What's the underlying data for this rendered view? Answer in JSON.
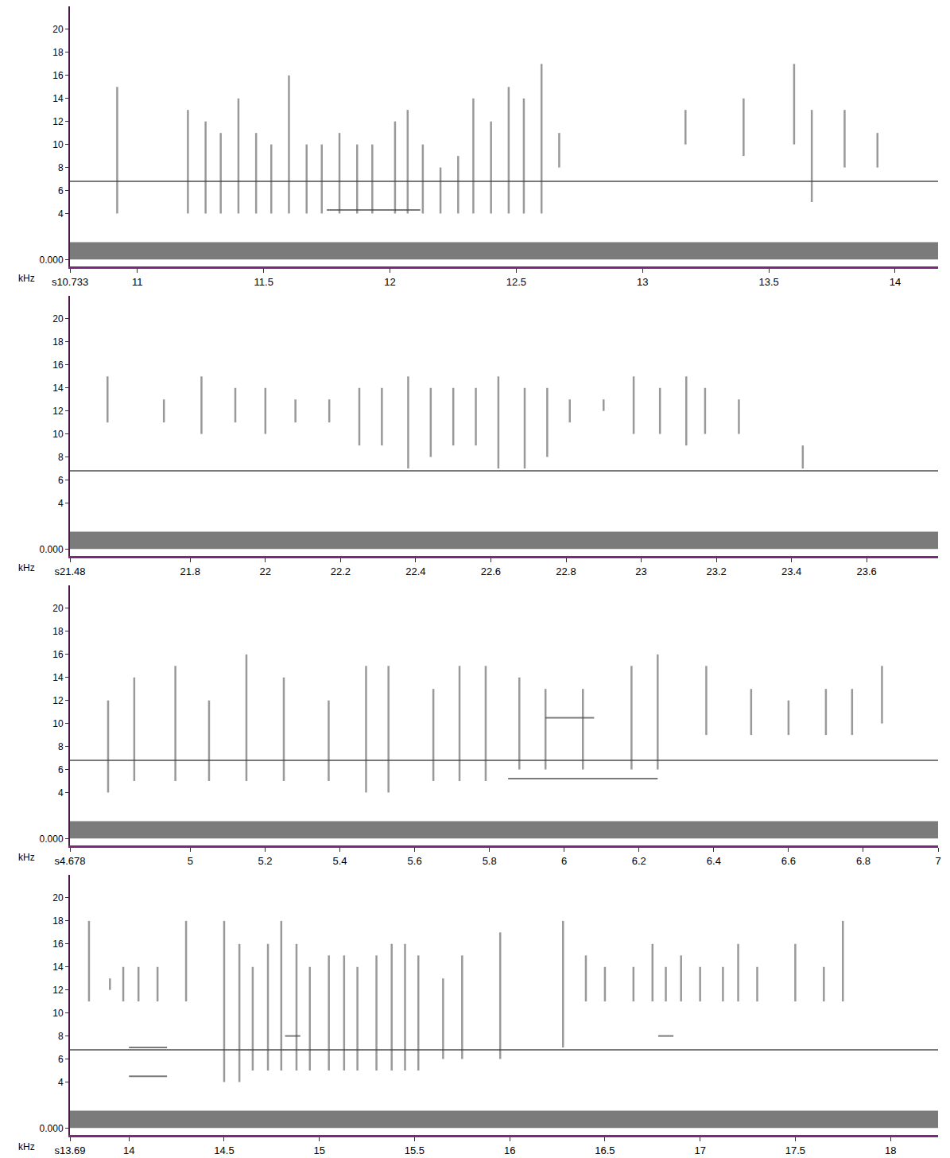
{
  "chart_data": [
    {
      "type": "spectrogram",
      "y_label": "kHz",
      "xlim": [
        10.733,
        14.17
      ],
      "ylim": [
        -0.6,
        22
      ],
      "xticks": [
        {
          "value": 10.733,
          "label": "s10.733"
        },
        11,
        11.5,
        12,
        12.5,
        13,
        13.5,
        14
      ],
      "yticks": [
        {
          "value": 0,
          "label": "0.000"
        },
        4,
        6,
        8,
        10,
        12,
        14,
        16,
        18,
        20
      ],
      "noise_band": 1.5,
      "clicks": [
        [
          10.92,
          4,
          15
        ],
        [
          11.2,
          4,
          13
        ],
        [
          11.27,
          4,
          12
        ],
        [
          11.33,
          4,
          11
        ],
        [
          11.4,
          4,
          14
        ],
        [
          11.47,
          4,
          11
        ],
        [
          11.53,
          4,
          10
        ],
        [
          11.6,
          4,
          16
        ],
        [
          11.67,
          4,
          10
        ],
        [
          11.73,
          4,
          10
        ],
        [
          11.8,
          4,
          11
        ],
        [
          11.87,
          4,
          10
        ],
        [
          11.93,
          4,
          10
        ],
        [
          12.02,
          4,
          12
        ],
        [
          12.07,
          4,
          13
        ],
        [
          12.13,
          4,
          10
        ],
        [
          12.2,
          4,
          8
        ],
        [
          12.27,
          4,
          9
        ],
        [
          12.33,
          4,
          14
        ],
        [
          12.4,
          4,
          12
        ],
        [
          12.47,
          4,
          15
        ],
        [
          12.53,
          4,
          14
        ],
        [
          12.6,
          4,
          17
        ],
        [
          12.67,
          8,
          11
        ],
        [
          13.17,
          10,
          13
        ],
        [
          13.4,
          9,
          14
        ],
        [
          13.6,
          10,
          17
        ],
        [
          13.67,
          5,
          13
        ],
        [
          13.8,
          8,
          13
        ],
        [
          13.93,
          8,
          11
        ]
      ],
      "tones": [
        [
          10.733,
          14.17,
          6.8
        ],
        [
          11.75,
          12.12,
          4.3
        ]
      ]
    },
    {
      "type": "spectrogram",
      "y_label": "kHz",
      "xlim": [
        21.48,
        23.79
      ],
      "ylim": [
        -0.6,
        22
      ],
      "xticks": [
        {
          "value": 21.48,
          "label": "s21.48"
        },
        21.8,
        22,
        22.2,
        22.4,
        22.6,
        22.8,
        23,
        23.2,
        23.4,
        23.6
      ],
      "yticks": [
        {
          "value": 0,
          "label": "0.000"
        },
        4,
        6,
        8,
        10,
        12,
        14,
        16,
        18,
        20
      ],
      "noise_band": 1.5,
      "clicks": [
        [
          21.58,
          11,
          15
        ],
        [
          21.73,
          11,
          13
        ],
        [
          21.83,
          10,
          15
        ],
        [
          21.92,
          11,
          14
        ],
        [
          22.0,
          10,
          14
        ],
        [
          22.08,
          11,
          13
        ],
        [
          22.17,
          11,
          13
        ],
        [
          22.25,
          9,
          14
        ],
        [
          22.31,
          9,
          14
        ],
        [
          22.38,
          7,
          15
        ],
        [
          22.44,
          8,
          14
        ],
        [
          22.5,
          9,
          14
        ],
        [
          22.56,
          9,
          14
        ],
        [
          22.62,
          7,
          15
        ],
        [
          22.69,
          7,
          14
        ],
        [
          22.75,
          8,
          14
        ],
        [
          22.81,
          11,
          13
        ],
        [
          22.9,
          12,
          13
        ],
        [
          22.98,
          10,
          15
        ],
        [
          23.05,
          10,
          14
        ],
        [
          23.12,
          9,
          15
        ],
        [
          23.17,
          10,
          14
        ],
        [
          23.26,
          10,
          13
        ],
        [
          23.43,
          7,
          9
        ]
      ],
      "tones": [
        [
          21.48,
          23.79,
          6.8
        ]
      ]
    },
    {
      "type": "spectrogram",
      "y_label": "kHz",
      "xlim": [
        4.678,
        7.0
      ],
      "ylim": [
        -0.6,
        22
      ],
      "xticks": [
        {
          "value": 4.678,
          "label": "s4.678"
        },
        5,
        5.2,
        5.4,
        5.6,
        5.8,
        6,
        6.2,
        6.4,
        6.6,
        6.8,
        7
      ],
      "yticks": [
        {
          "value": 0,
          "label": "0.000"
        },
        4,
        6,
        8,
        10,
        12,
        14,
        16,
        18,
        20
      ],
      "noise_band": 1.5,
      "clicks": [
        [
          4.78,
          4,
          12
        ],
        [
          4.85,
          5,
          14
        ],
        [
          4.96,
          5,
          15
        ],
        [
          5.05,
          5,
          12
        ],
        [
          5.15,
          5,
          16
        ],
        [
          5.25,
          5,
          14
        ],
        [
          5.37,
          5,
          12
        ],
        [
          5.47,
          4,
          15
        ],
        [
          5.53,
          4,
          15
        ],
        [
          5.65,
          5,
          13
        ],
        [
          5.72,
          5,
          15
        ],
        [
          5.79,
          5,
          15
        ],
        [
          5.88,
          6,
          14
        ],
        [
          5.95,
          6,
          13
        ],
        [
          6.05,
          6,
          13
        ],
        [
          6.18,
          6,
          15
        ],
        [
          6.25,
          6,
          16
        ],
        [
          6.38,
          9,
          15
        ],
        [
          6.5,
          9,
          13
        ],
        [
          6.6,
          9,
          12
        ],
        [
          6.7,
          9,
          13
        ],
        [
          6.77,
          9,
          13
        ],
        [
          6.85,
          10,
          15
        ]
      ],
      "tones": [
        [
          4.678,
          7.0,
          6.8
        ],
        [
          5.85,
          6.25,
          5.2
        ],
        [
          5.95,
          6.08,
          10.5
        ]
      ]
    },
    {
      "type": "spectrogram",
      "y_label": "kHz",
      "xlim": [
        13.69,
        18.25
      ],
      "ylim": [
        -0.6,
        22
      ],
      "xticks": [
        {
          "value": 13.69,
          "label": "s13.69"
        },
        14,
        14.5,
        15,
        15.5,
        16,
        16.5,
        17,
        17.5,
        18
      ],
      "yticks": [
        {
          "value": 0,
          "label": "0.000"
        },
        4,
        6,
        8,
        10,
        12,
        14,
        16,
        18,
        20
      ],
      "noise_band": 1.5,
      "clicks": [
        [
          13.79,
          11,
          18
        ],
        [
          13.9,
          12,
          13
        ],
        [
          13.97,
          11,
          14
        ],
        [
          14.05,
          11,
          14
        ],
        [
          14.15,
          11,
          14
        ],
        [
          14.3,
          11,
          18
        ],
        [
          14.5,
          4,
          18
        ],
        [
          14.58,
          4,
          16
        ],
        [
          14.65,
          5,
          14
        ],
        [
          14.73,
          5,
          16
        ],
        [
          14.8,
          5,
          18
        ],
        [
          14.88,
          5,
          16
        ],
        [
          14.95,
          5,
          14
        ],
        [
          15.05,
          5,
          15
        ],
        [
          15.13,
          5,
          15
        ],
        [
          15.2,
          5,
          14
        ],
        [
          15.3,
          5,
          15
        ],
        [
          15.38,
          5,
          16
        ],
        [
          15.45,
          5,
          16
        ],
        [
          15.52,
          5,
          15
        ],
        [
          15.65,
          6,
          13
        ],
        [
          15.75,
          6,
          15
        ],
        [
          15.95,
          6,
          17
        ],
        [
          16.28,
          7,
          18
        ],
        [
          16.4,
          11,
          15
        ],
        [
          16.5,
          11,
          14
        ],
        [
          16.65,
          11,
          14
        ],
        [
          16.75,
          11,
          16
        ],
        [
          16.82,
          11,
          14
        ],
        [
          16.9,
          11,
          15
        ],
        [
          17.0,
          11,
          14
        ],
        [
          17.12,
          11,
          14
        ],
        [
          17.2,
          11,
          16
        ],
        [
          17.3,
          11,
          14
        ],
        [
          17.5,
          11,
          16
        ],
        [
          17.65,
          11,
          14
        ],
        [
          17.75,
          11,
          18
        ]
      ],
      "tones": [
        [
          13.69,
          18.25,
          6.8
        ],
        [
          14.0,
          14.2,
          4.5
        ],
        [
          14.0,
          14.2,
          7.0
        ],
        [
          14.82,
          14.9,
          8.0
        ],
        [
          16.78,
          16.86,
          8.0
        ]
      ]
    }
  ]
}
